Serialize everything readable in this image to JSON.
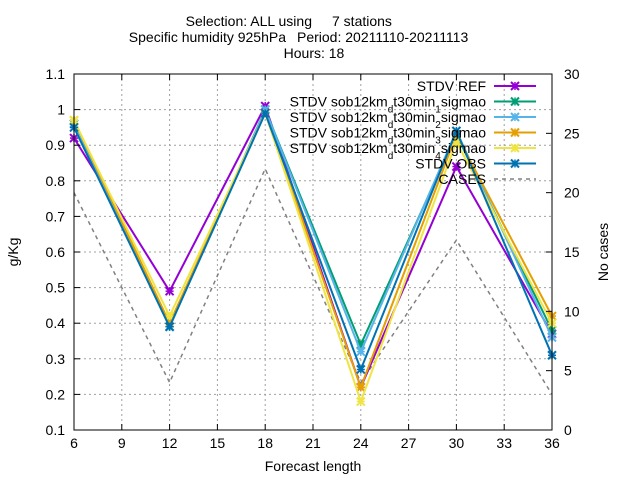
{
  "title": {
    "line1_a": "Selection: ALL using",
    "line1_b": "7 stations",
    "line2_a": "Specific humidity 925hPa",
    "line2_b": "Period: 20211110-20211113",
    "line3": "Hours: 18"
  },
  "chart_data": {
    "type": "line",
    "xlabel": "Forecast length",
    "ylabel": "g/Kg",
    "y2label": "No cases",
    "xlim": [
      6,
      36
    ],
    "ylim": [
      0.1,
      1.1
    ],
    "y2lim": [
      0,
      30
    ],
    "xticks": [
      "6",
      "9",
      "12",
      "15",
      "18",
      "21",
      "24",
      "27",
      "30",
      "33",
      "36"
    ],
    "yticks": [
      "0.1",
      "0.2",
      "0.3",
      "0.4",
      "0.5",
      "0.6",
      "0.7",
      "0.8",
      "0.9",
      "1",
      "1.1"
    ],
    "y2ticks": [
      "0",
      "5",
      "10",
      "15",
      "20",
      "25",
      "30"
    ],
    "grid": true,
    "legend_position": "top-right",
    "x": [
      6,
      12,
      18,
      24,
      30,
      36
    ],
    "series": [
      {
        "name": "STDV REF",
        "legend_parts": [
          [
            "STDV REF",
            ""
          ]
        ],
        "color": "#9400d3",
        "axis": "left",
        "marker": "x",
        "dashed": false,
        "values": [
          0.92,
          0.49,
          1.01,
          0.22,
          0.84,
          0.37
        ]
      },
      {
        "name": "STDV sob12km_d t30min_1 sigmao",
        "legend_parts": [
          [
            "STDV sob12km",
            ""
          ],
          [
            "d",
            "sub"
          ],
          [
            "t30min",
            ""
          ],
          [
            "1",
            "sub"
          ],
          [
            "sigmao",
            ""
          ]
        ],
        "color": "#009e73",
        "axis": "left",
        "marker": "x",
        "dashed": false,
        "values": [
          0.96,
          0.39,
          1.0,
          0.34,
          0.93,
          0.38
        ]
      },
      {
        "name": "STDV sob12km_d t30min_2 sigmao",
        "legend_parts": [
          [
            "STDV sob12km",
            ""
          ],
          [
            "d",
            "sub"
          ],
          [
            "t30min",
            ""
          ],
          [
            "2",
            "sub"
          ],
          [
            "sigmao",
            ""
          ]
        ],
        "color": "#56b4e9",
        "axis": "left",
        "marker": "x",
        "dashed": false,
        "values": [
          0.96,
          0.39,
          1.0,
          0.32,
          0.94,
          0.36
        ]
      },
      {
        "name": "STDV sob12km_d t30min_3 sigmao",
        "legend_parts": [
          [
            "STDV sob12km",
            ""
          ],
          [
            "d",
            "sub"
          ],
          [
            "t30min",
            ""
          ],
          [
            "3",
            "sub"
          ],
          [
            "sigmao",
            ""
          ]
        ],
        "color": "#e69f00",
        "axis": "left",
        "marker": "x",
        "dashed": false,
        "values": [
          0.97,
          0.4,
          0.99,
          0.22,
          0.93,
          0.42
        ]
      },
      {
        "name": "STDV sob12km_d t30min_4 sigmao",
        "legend_parts": [
          [
            "STDV sob12km",
            ""
          ],
          [
            "d",
            "sub"
          ],
          [
            "t30min",
            ""
          ],
          [
            "4",
            "sub"
          ],
          [
            "sigmao",
            ""
          ]
        ],
        "color": "#f0e442",
        "axis": "left",
        "marker": "x",
        "dashed": false,
        "values": [
          0.97,
          0.42,
          0.99,
          0.18,
          0.91,
          0.4
        ]
      },
      {
        "name": "STDV OBS",
        "legend_parts": [
          [
            "STDV OBS",
            ""
          ]
        ],
        "color": "#0072b2",
        "axis": "left",
        "marker": "x",
        "dashed": false,
        "values": [
          0.95,
          0.39,
          0.99,
          0.27,
          0.94,
          0.31
        ]
      },
      {
        "name": "CASES",
        "legend_parts": [
          [
            "CASES",
            ""
          ]
        ],
        "color": "#808080",
        "axis": "right",
        "marker": "none",
        "dashed": true,
        "values": [
          20,
          4,
          22,
          4,
          16,
          3
        ]
      }
    ]
  }
}
